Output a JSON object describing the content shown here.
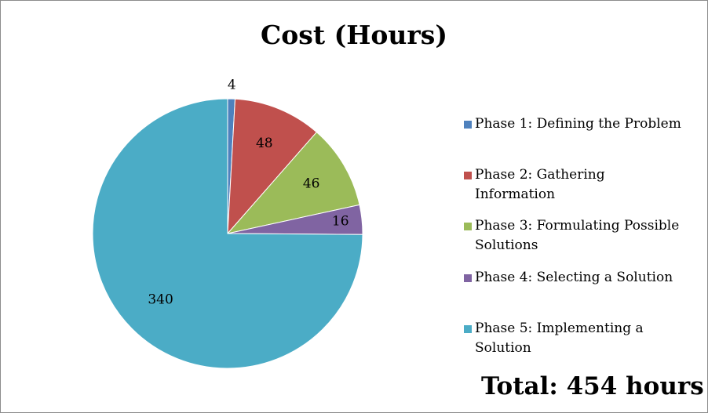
{
  "chart_data": {
    "type": "pie",
    "title": "Cost (Hours)",
    "categories": [
      "Phase 1: Defining the Problem",
      "Phase 2: Gathering Information",
      "Phase 3: Formulating Possible Solutions",
      "Phase 4: Selecting a Solution",
      "Phase 5: Implementing a Solution"
    ],
    "values": [
      4,
      48,
      46,
      16,
      340
    ],
    "colors": [
      "#4f81bd",
      "#c0504d",
      "#9bbb59",
      "#8064a2",
      "#4bacc6"
    ],
    "legend_position": "right"
  },
  "legend": [
    {
      "line1": "Phase 1: Defining the Problem",
      "line2": ""
    },
    {
      "line1": "Phase 2: Gathering",
      "line2": "Information"
    },
    {
      "line1": "Phase 3: Formulating Possible",
      "line2": "Solutions"
    },
    {
      "line1": "Phase 4: Selecting a Solution",
      "line2": ""
    },
    {
      "line1": "Phase 5: Implementing a",
      "line2": "Solution"
    }
  ],
  "total_text": "Total: 454 hours"
}
